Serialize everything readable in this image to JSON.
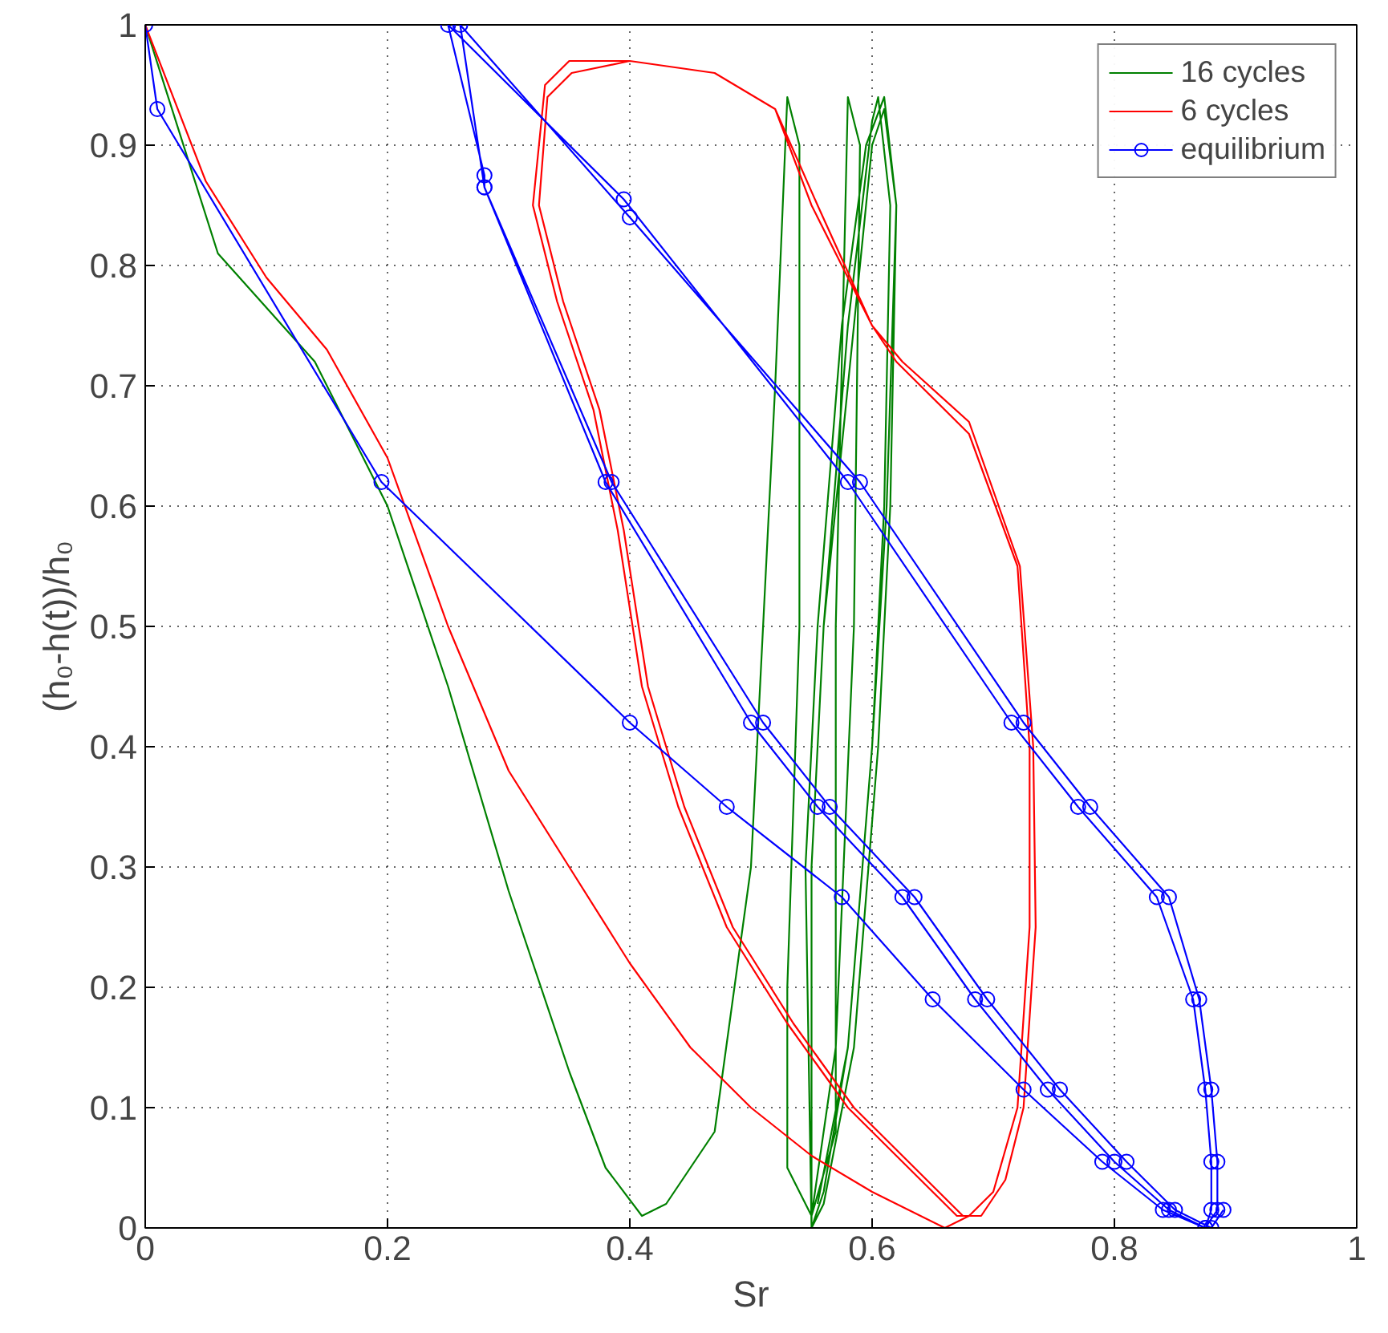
{
  "chart_data": {
    "type": "line",
    "xlabel": "Sr",
    "ylabel": "(h₀-h(t))/h₀",
    "xlim": [
      0,
      1
    ],
    "ylim": [
      0,
      1
    ],
    "xticks": [
      0,
      0.2,
      0.4,
      0.6,
      0.8,
      1
    ],
    "yticks": [
      0,
      0.1,
      0.2,
      0.3,
      0.4,
      0.5,
      0.6,
      0.7,
      0.8,
      0.9,
      1
    ],
    "grid": true,
    "legend": "top right",
    "line_style": "solid",
    "series": [
      {
        "name": "16 cycles",
        "color": "#008000",
        "marker": "none",
        "x": [
          0,
          0.06,
          0.14,
          0.2,
          0.25,
          0.3,
          0.35,
          0.38,
          0.41,
          0.43,
          0.47,
          0.5,
          0.52,
          0.53,
          0.54,
          0.54,
          0.53,
          0.53,
          0.55,
          0.57,
          0.57,
          0.58,
          0.59,
          0.585,
          0.57,
          0.55,
          0.55,
          0.56,
          0.58,
          0.6,
          0.605,
          0.615,
          0.61,
          0.6,
          0.58,
          0.56,
          0.55,
          0.545,
          0.555,
          0.575,
          0.595,
          0.61,
          0.62,
          0.615,
          0.605,
          0.585,
          0.56,
          0.55,
          0.55,
          0.56,
          0.585,
          0.6,
          0.61,
          0.62,
          0.612,
          0.6,
          0.58,
          0.555
        ],
        "values": [
          1,
          0.81,
          0.72,
          0.6,
          0.45,
          0.28,
          0.13,
          0.05,
          0.01,
          0.02,
          0.08,
          0.3,
          0.7,
          0.94,
          0.9,
          0.5,
          0.2,
          0.05,
          0.01,
          0.08,
          0.5,
          0.94,
          0.9,
          0.5,
          0.15,
          0.01,
          0.3,
          0.5,
          0.75,
          0.92,
          0.94,
          0.85,
          0.6,
          0.4,
          0.15,
          0.03,
          0,
          0.3,
          0.5,
          0.75,
          0.9,
          0.94,
          0.85,
          0.6,
          0.4,
          0.15,
          0.02,
          0,
          0.3,
          0.5,
          0.75,
          0.9,
          0.93,
          0.85,
          0.6,
          0.4,
          0.15,
          0.02
        ]
      },
      {
        "name": "6 cycles",
        "color": "#ff0000",
        "marker": "none",
        "x": [
          0,
          0.05,
          0.1,
          0.15,
          0.2,
          0.25,
          0.3,
          0.35,
          0.4,
          0.45,
          0.5,
          0.55,
          0.6,
          0.66,
          0.68,
          0.7,
          0.72,
          0.73,
          0.73,
          0.72,
          0.68,
          0.62,
          0.6,
          0.55,
          0.52,
          0.47,
          0.4,
          0.35,
          0.33,
          0.32,
          0.34,
          0.37,
          0.39,
          0.41,
          0.44,
          0.48,
          0.53,
          0.58,
          0.63,
          0.67,
          0.69,
          0.71,
          0.725,
          0.735,
          0.733,
          0.722,
          0.68,
          0.625,
          0.6,
          0.555,
          0.52,
          0.47,
          0.4,
          0.352,
          0.332,
          0.325,
          0.345,
          0.375,
          0.395,
          0.415,
          0.445,
          0.485,
          0.535,
          0.585,
          0.635,
          0.675
        ],
        "values": [
          1,
          0.87,
          0.79,
          0.73,
          0.64,
          0.5,
          0.38,
          0.3,
          0.22,
          0.15,
          0.1,
          0.06,
          0.03,
          0,
          0.01,
          0.03,
          0.1,
          0.25,
          0.4,
          0.55,
          0.66,
          0.72,
          0.75,
          0.85,
          0.93,
          0.96,
          0.97,
          0.97,
          0.95,
          0.85,
          0.77,
          0.68,
          0.58,
          0.45,
          0.35,
          0.25,
          0.17,
          0.1,
          0.05,
          0.01,
          0.01,
          0.04,
          0.1,
          0.25,
          0.4,
          0.55,
          0.67,
          0.72,
          0.75,
          0.85,
          0.93,
          0.96,
          0.97,
          0.96,
          0.94,
          0.85,
          0.77,
          0.68,
          0.58,
          0.45,
          0.35,
          0.25,
          0.17,
          0.1,
          0.05,
          0.01
        ]
      },
      {
        "name": "equilibrium",
        "color": "#0000ff",
        "marker": "circle",
        "x": [
          0,
          0.01,
          0.195,
          0.4,
          0.48,
          0.575,
          0.65,
          0.725,
          0.79,
          0.84,
          0.875,
          0.88,
          0.88,
          0.875,
          0.865,
          0.835,
          0.77,
          0.715,
          0.58,
          0.395,
          0.25,
          0.28,
          0.28,
          0.38,
          0.5,
          0.555,
          0.625,
          0.685,
          0.745,
          0.8,
          0.845,
          0.875,
          0.885,
          0.885,
          0.88,
          0.87,
          0.845,
          0.78,
          0.725,
          0.59,
          0.4,
          0.26,
          0.28,
          0.385,
          0.51,
          0.565,
          0.635,
          0.695,
          0.755,
          0.81,
          0.85,
          0.88,
          0.89
        ],
        "values": [
          1,
          0.93,
          0.62,
          0.42,
          0.35,
          0.275,
          0.19,
          0.115,
          0.055,
          0.015,
          0,
          0.015,
          0.055,
          0.115,
          0.19,
          0.275,
          0.35,
          0.42,
          0.62,
          0.855,
          1,
          0.875,
          0.865,
          0.62,
          0.42,
          0.35,
          0.275,
          0.19,
          0.115,
          0.055,
          0.015,
          0,
          0.015,
          0.055,
          0.115,
          0.19,
          0.275,
          0.35,
          0.42,
          0.62,
          0.84,
          1,
          0.865,
          0.62,
          0.42,
          0.35,
          0.275,
          0.19,
          0.115,
          0.055,
          0.015,
          0,
          0.015
        ]
      }
    ]
  }
}
